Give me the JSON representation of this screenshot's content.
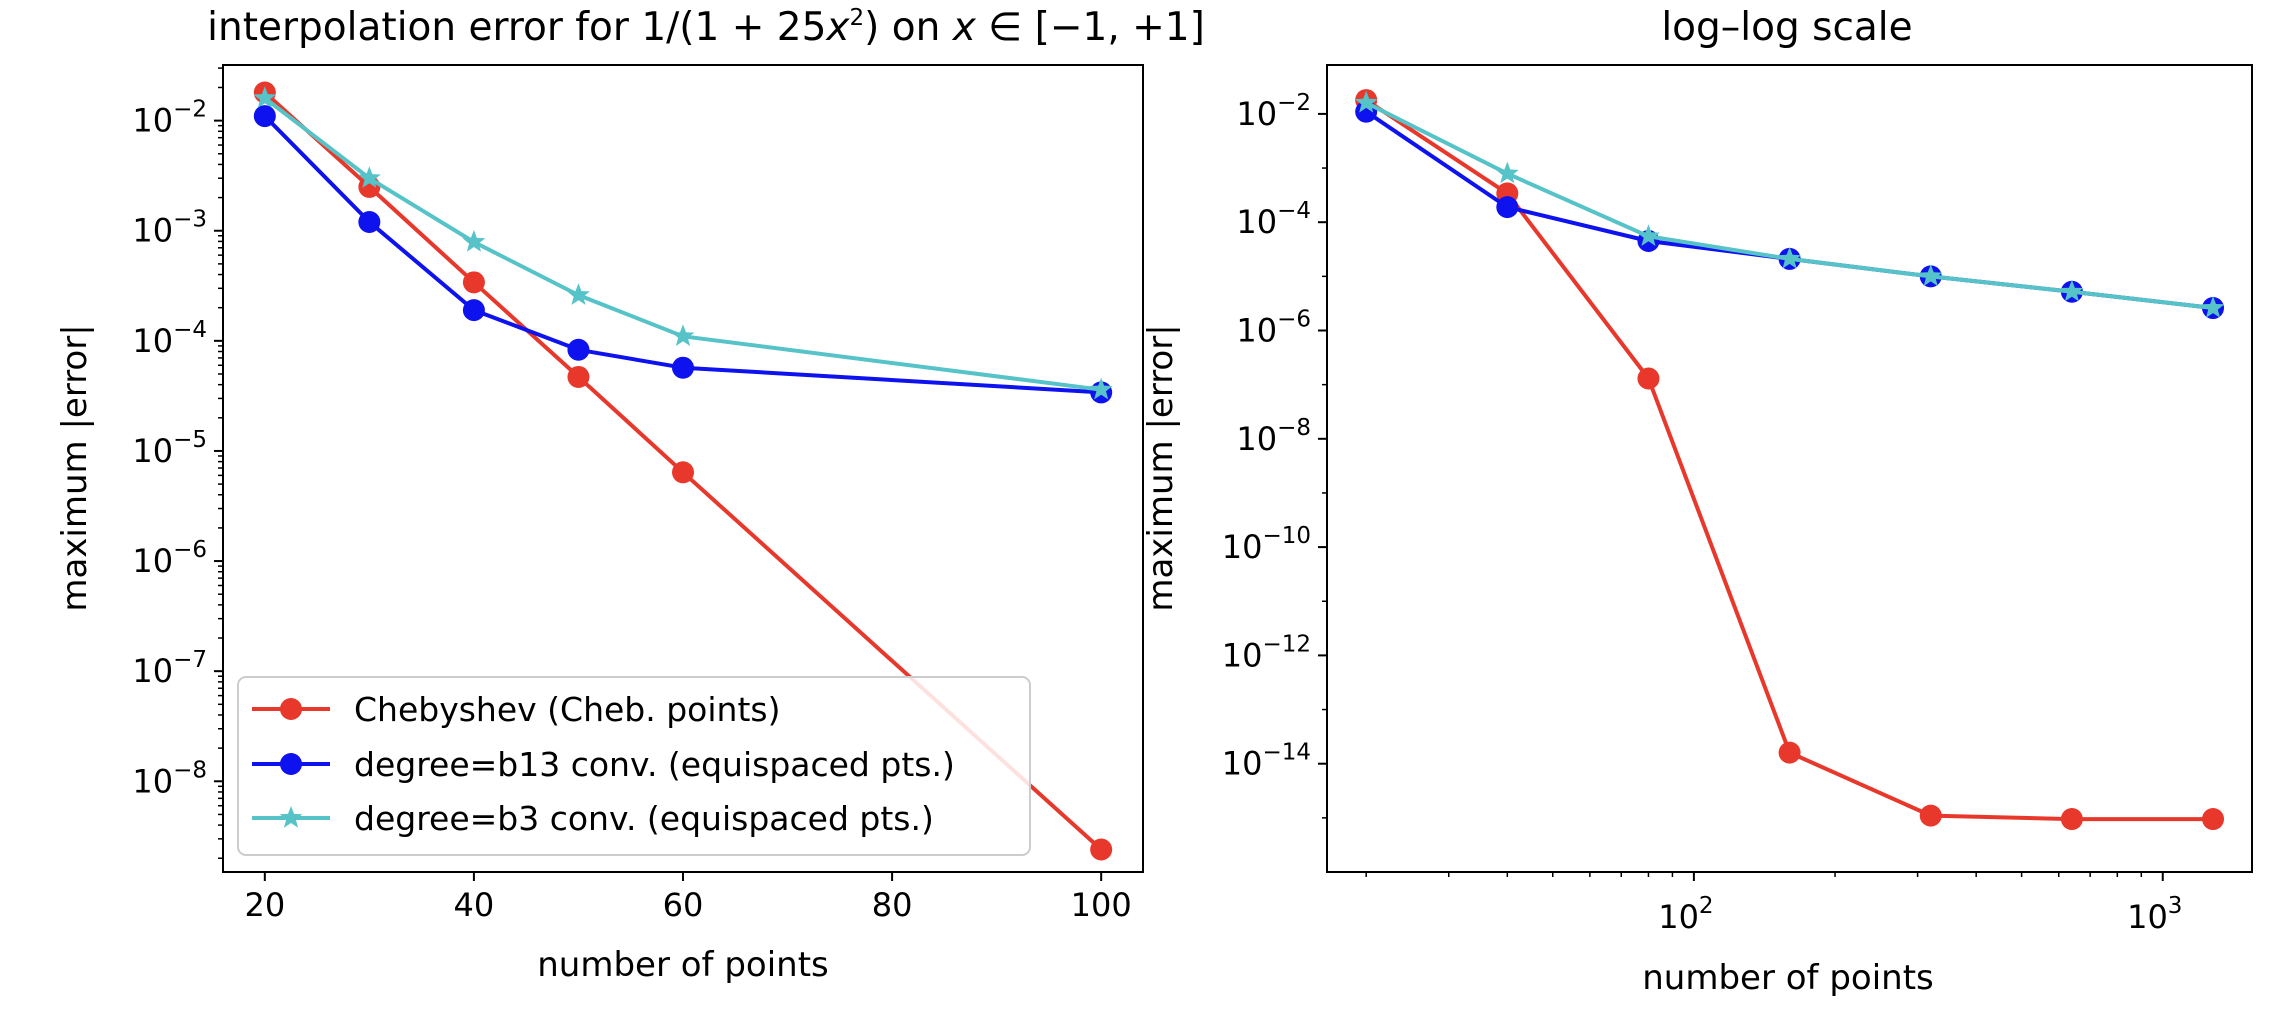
{
  "chart_data": [
    {
      "type": "line",
      "title": "interpolation error for 1/(1 + 25x²) on x ∈ [−1, +1]",
      "title_parts": {
        "head": "interpolation error for 1/(1 + 25",
        "var1": "x",
        "pow": "2",
        "mid": ") on ",
        "var2": "x",
        "tail": " ∈ [−1, +1]"
      },
      "xlabel": "number of points",
      "ylabel": "maximum |error|",
      "xscale": "linear",
      "yscale": "log",
      "xlim": [
        16,
        104
      ],
      "ylim": [
        1.5e-09,
        0.032
      ],
      "xticks": [
        20,
        40,
        60,
        80,
        100
      ],
      "xtick_labels": [
        "20",
        "40",
        "60",
        "80",
        "100"
      ],
      "yticks_exp": [
        -8,
        -7,
        -6,
        -5,
        -4,
        -3,
        -2
      ],
      "ytick_base": "10",
      "ytick_exponents": [
        "−8",
        "−7",
        "−6",
        "−5",
        "−4",
        "−3",
        "−2"
      ],
      "legend_position": "lower-left",
      "grid": false,
      "series": [
        {
          "name": "Chebyshev (Cheb. points)",
          "color": "#e8382c",
          "marker": "circle",
          "x": [
            20,
            30,
            40,
            50,
            60,
            100
          ],
          "y": [
            0.018,
            0.0025,
            0.00034,
            4.7e-05,
            6.4e-06,
            2.4e-09
          ]
        },
        {
          "name": "degree=b13 conv. (equispaced pts.)",
          "color": "#0d12ee",
          "marker": "circle",
          "x": [
            20,
            30,
            40,
            50,
            60,
            100
          ],
          "y": [
            0.011,
            0.0012,
            0.00019,
            8.3e-05,
            5.7e-05,
            3.4e-05
          ]
        },
        {
          "name": "degree=b3 conv. (equispaced pts.)",
          "color": "#55c3c7",
          "marker": "star",
          "x": [
            20,
            30,
            40,
            50,
            60,
            100
          ],
          "y": [
            0.016,
            0.003,
            0.00079,
            0.00026,
            0.00011,
            3.6e-05
          ]
        }
      ]
    },
    {
      "type": "line",
      "title": "log–log scale",
      "xlabel": "number of points",
      "ylabel": "maximum |error|",
      "xscale": "log",
      "yscale": "log",
      "xlim": [
        16.5,
        1550
      ],
      "ylim": [
        1e-16,
        0.08
      ],
      "xticks_exp": [
        2,
        3
      ],
      "xtick_base": "10",
      "xtick_exponents": [
        "2",
        "3"
      ],
      "yticks_exp": [
        -14,
        -12,
        -10,
        -8,
        -6,
        -4,
        -2
      ],
      "ytick_base": "10",
      "ytick_exponents": [
        "−14",
        "−12",
        "−10",
        "−8",
        "−6",
        "−4",
        "−2"
      ],
      "grid": false,
      "series": [
        {
          "name": "Chebyshev (Cheb. points)",
          "color": "#e8382c",
          "marker": "circle",
          "x": [
            20,
            40,
            80,
            160,
            320,
            640,
            1280
          ],
          "y": [
            0.018,
            0.00034,
            1.3e-07,
            1.6e-14,
            1.1e-15,
            9.5e-16,
            9.5e-16
          ]
        },
        {
          "name": "degree=b13 conv. (equispaced pts.)",
          "color": "#0d12ee",
          "marker": "circle",
          "x": [
            20,
            40,
            80,
            160,
            320,
            640,
            1280
          ],
          "y": [
            0.011,
            0.00019,
            4.5e-05,
            2.1e-05,
            1e-05,
            5.2e-06,
            2.6e-06
          ]
        },
        {
          "name": "degree=b3 conv. (equispaced pts.)",
          "color": "#55c3c7",
          "marker": "star",
          "x": [
            20,
            40,
            80,
            160,
            320,
            640,
            1280
          ],
          "y": [
            0.016,
            0.00079,
            5.5e-05,
            2.1e-05,
            1e-05,
            5.2e-06,
            2.6e-06
          ]
        }
      ]
    }
  ]
}
